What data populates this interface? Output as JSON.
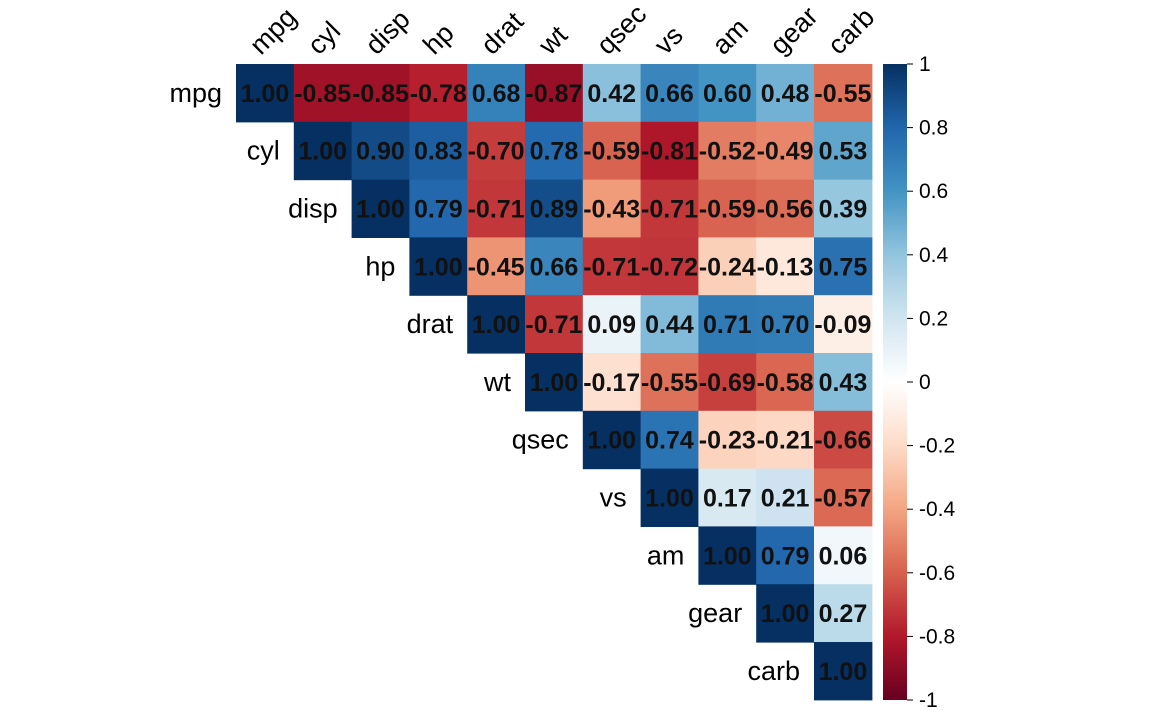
{
  "chart_data": {
    "type": "heatmap",
    "title": "",
    "layout": "upper-triangular correlation matrix",
    "variables": [
      "mpg",
      "cyl",
      "disp",
      "hp",
      "drat",
      "wt",
      "qsec",
      "vs",
      "am",
      "gear",
      "carb"
    ],
    "values": [
      [
        1.0,
        -0.85,
        -0.85,
        -0.78,
        0.68,
        -0.87,
        0.42,
        0.66,
        0.6,
        0.48,
        -0.55
      ],
      [
        null,
        1.0,
        0.9,
        0.83,
        -0.7,
        0.78,
        -0.59,
        -0.81,
        -0.52,
        -0.49,
        0.53
      ],
      [
        null,
        null,
        1.0,
        0.79,
        -0.71,
        0.89,
        -0.43,
        -0.71,
        -0.59,
        -0.56,
        0.39
      ],
      [
        null,
        null,
        null,
        1.0,
        -0.45,
        0.66,
        -0.71,
        -0.72,
        -0.24,
        -0.13,
        0.75
      ],
      [
        null,
        null,
        null,
        null,
        1.0,
        -0.71,
        0.09,
        0.44,
        0.71,
        0.7,
        -0.09
      ],
      [
        null,
        null,
        null,
        null,
        null,
        1.0,
        -0.17,
        -0.55,
        -0.69,
        -0.58,
        0.43
      ],
      [
        null,
        null,
        null,
        null,
        null,
        null,
        1.0,
        0.74,
        -0.23,
        -0.21,
        -0.66
      ],
      [
        null,
        null,
        null,
        null,
        null,
        null,
        null,
        1.0,
        0.17,
        0.21,
        -0.57
      ],
      [
        null,
        null,
        null,
        null,
        null,
        null,
        null,
        null,
        1.0,
        0.79,
        0.06
      ],
      [
        null,
        null,
        null,
        null,
        null,
        null,
        null,
        null,
        null,
        1.0,
        0.27
      ],
      [
        null,
        null,
        null,
        null,
        null,
        null,
        null,
        null,
        null,
        null,
        1.0
      ]
    ],
    "colorbar": {
      "range": [
        -1,
        1
      ],
      "ticks": [
        1,
        0.8,
        0.6,
        0.4,
        0.2,
        0,
        -0.2,
        -0.4,
        -0.6,
        -0.8,
        -1
      ],
      "tick_labels": [
        "1",
        "0.8",
        "0.6",
        "0.4",
        "0.2",
        "0",
        "-0.2",
        "-0.4",
        "-0.6",
        "-0.8",
        "-1"
      ],
      "placement": "right"
    },
    "palette": [
      "#67001F",
      "#B2182B",
      "#D6604D",
      "#F4A582",
      "#FDDBC7",
      "#FFFFFF",
      "#D1E5F0",
      "#92C5DE",
      "#4393C3",
      "#2166AC",
      "#053061"
    ]
  }
}
